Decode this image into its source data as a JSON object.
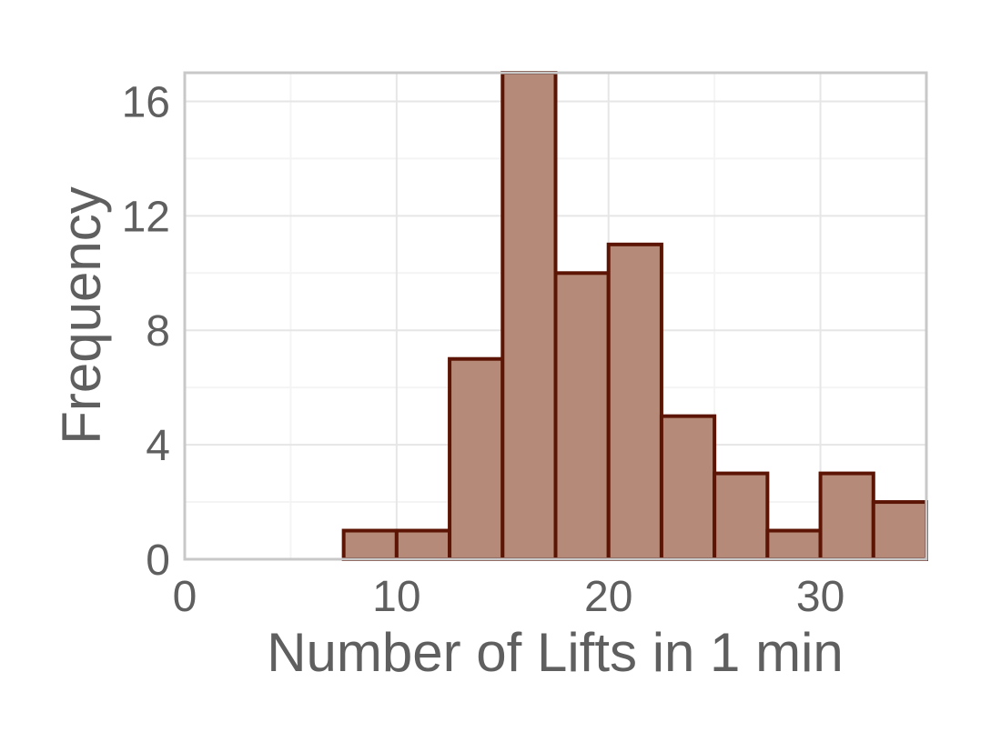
{
  "chart_data": {
    "type": "bar",
    "subtype": "histogram",
    "xlabel": "Number of Lifts in 1 min",
    "ylabel": "Frequency",
    "xlim": [
      0,
      35
    ],
    "ylim": [
      0,
      17
    ],
    "xticks": [
      0,
      10,
      20,
      30
    ],
    "yticks": [
      0,
      4,
      8,
      12,
      16
    ],
    "grid": true,
    "bin_width": 2.5,
    "bins": [
      {
        "start": 7.5,
        "end": 10,
        "count": 1
      },
      {
        "start": 10,
        "end": 12.5,
        "count": 1
      },
      {
        "start": 12.5,
        "end": 15,
        "count": 7
      },
      {
        "start": 15,
        "end": 17.5,
        "count": 17
      },
      {
        "start": 17.5,
        "end": 20,
        "count": 10
      },
      {
        "start": 20,
        "end": 22.5,
        "count": 11
      },
      {
        "start": 22.5,
        "end": 25,
        "count": 5
      },
      {
        "start": 25,
        "end": 27.5,
        "count": 3
      },
      {
        "start": 27.5,
        "end": 30,
        "count": 1
      },
      {
        "start": 30,
        "end": 32.5,
        "count": 3
      },
      {
        "start": 32.5,
        "end": 35,
        "count": 2
      }
    ],
    "colors": {
      "bar_fill": "#b68a78",
      "bar_stroke": "#5c1505",
      "grid_major": "#e6e6e6",
      "grid_minor": "#f4f4f4",
      "panel_border": "#c8c8c8",
      "text": "#5f5f5f"
    }
  }
}
